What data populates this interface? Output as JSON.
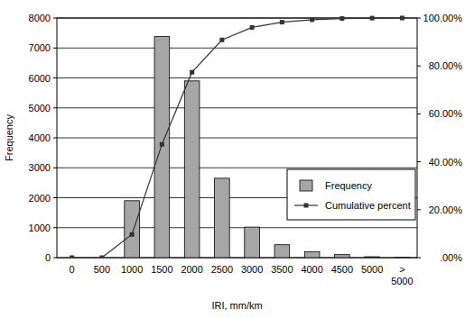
{
  "chart_data": {
    "type": "bar",
    "x_label": "IRI, mm/km",
    "y_label": "Frequency",
    "categories": [
      "0",
      "500",
      "1000",
      "1500",
      "2000",
      "2500",
      "3000",
      "3500",
      "4000",
      "4500",
      "5000",
      "> 5000"
    ],
    "series": [
      {
        "name": "Frequency",
        "type": "bar",
        "color": "#a6a6a6",
        "values": [
          0,
          0,
          1900,
          7380,
          5900,
          2650,
          1020,
          430,
          200,
          100,
          30,
          10
        ]
      },
      {
        "name": "Cumulative percent",
        "type": "line",
        "axis": "y2",
        "color": "#333333",
        "marker": "square",
        "values": [
          0,
          0,
          9.68,
          47.3,
          77.37,
          90.88,
          96.08,
          98.27,
          99.29,
          99.8,
          99.95,
          100
        ]
      }
    ],
    "ylim": [
      0,
      8000
    ],
    "yticks": [
      0,
      1000,
      2000,
      3000,
      4000,
      5000,
      6000,
      7000,
      8000
    ],
    "y2lim": [
      0,
      100
    ],
    "y2ticks": [
      {
        "value": 0,
        "label": ".00%"
      },
      {
        "value": 20,
        "label": "20.00%"
      },
      {
        "value": 40,
        "label": "40.00%"
      },
      {
        "value": 60,
        "label": "60.00%"
      },
      {
        "value": 80,
        "label": "80.00%"
      },
      {
        "value": 100,
        "label": "100.00%"
      }
    ],
    "grid": true,
    "legend": "right"
  }
}
